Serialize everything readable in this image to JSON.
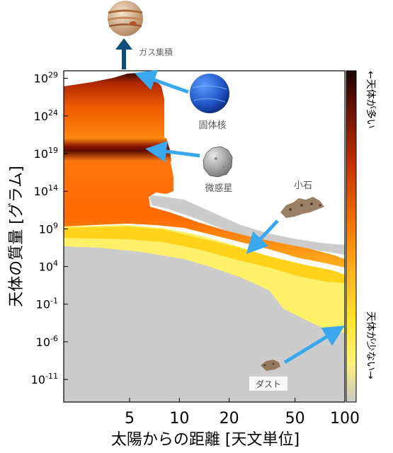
{
  "chart_data": {
    "type": "heatmap",
    "xlabel": "太陽からの距離 [天文単位]",
    "ylabel": "天体の質量 [グラム]",
    "x_scale": "log",
    "y_scale": "log",
    "xlim": [
      2.0,
      100
    ],
    "ylim": [
      1e-14,
      1e+30
    ],
    "x_ticks": [
      {
        "value": 5,
        "label": "5"
      },
      {
        "value": 10,
        "label": "10"
      },
      {
        "value": 20,
        "label": "20"
      },
      {
        "value": 50,
        "label": "50"
      },
      {
        "value": 100,
        "label": "100"
      }
    ],
    "y_ticks": [
      {
        "exp": 29,
        "base": "10",
        "sup": "29"
      },
      {
        "exp": 24,
        "base": "10",
        "sup": "24"
      },
      {
        "exp": 19,
        "base": "10",
        "sup": "19"
      },
      {
        "exp": 14,
        "base": "10",
        "sup": "14"
      },
      {
        "exp": 9,
        "base": "10",
        "sup": "9"
      },
      {
        "exp": 4,
        "base": "10",
        "sup": "4"
      },
      {
        "exp": -1,
        "base": "10",
        "sup": "-1"
      },
      {
        "exp": -6,
        "base": "10",
        "sup": "-6"
      },
      {
        "exp": -11,
        "base": "10",
        "sup": "-11"
      }
    ],
    "colorbar": {
      "top_label": "←天体が多い",
      "bottom_label": "天体が少ない→",
      "colors": [
        "#1a0500",
        "#8b1a00",
        "#e84a00",
        "#ff9a10",
        "#ffe020",
        "#fff070",
        "#cccccc"
      ]
    },
    "annotations": [
      {
        "text": "ガス集積",
        "icon": "jupiter-icon"
      },
      {
        "text": "固体核",
        "icon": "neptune-icon"
      },
      {
        "text": "微惑星",
        "icon": "planetesimal-icon"
      },
      {
        "text": "小石",
        "icon": "pebble-icon"
      },
      {
        "text": "ダスト",
        "icon": "dust-icon"
      }
    ],
    "grid": false
  }
}
